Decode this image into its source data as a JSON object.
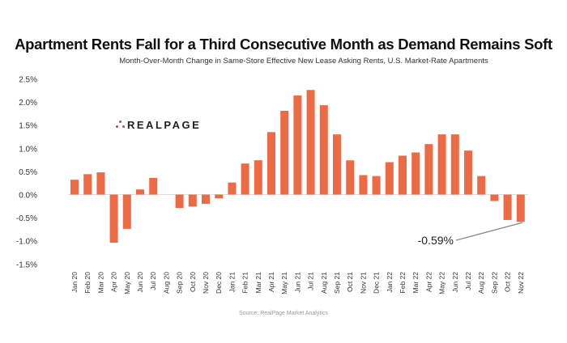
{
  "chart_data": {
    "type": "bar",
    "title": "Apartment Rents Fall for a Third Consecutive Month as Demand Remains Soft",
    "subtitle": "Month-Over-Month Change in Same-Store Effective New Lease Asking Rents, U.S. Market-Rate Apartments",
    "source": "Source: RealPage Market Analytics",
    "logo": "REALPAGE",
    "xlabel": "",
    "ylabel": "",
    "ylim": [
      -1.5,
      2.5
    ],
    "yticks": [
      2.5,
      2.0,
      1.5,
      1.0,
      0.5,
      0.0,
      -0.5,
      -1.0,
      -1.5
    ],
    "ytick_labels": [
      "2.5%",
      "2.0%",
      "1.5%",
      "1.0%",
      "0.5%",
      "0.0%",
      "-0.5%",
      "-1.0%",
      "-1.5%"
    ],
    "grid": false,
    "bar_color": "#ee6a45",
    "categories": [
      "Jan 20",
      "Feb 20",
      "Mar 20",
      "Apr 20",
      "May 20",
      "Jun 20",
      "Jul 20",
      "Aug 20",
      "Sep 20",
      "Oct 20",
      "Nov 20",
      "Dec 20",
      "Jan 21",
      "Feb 21",
      "Mar 21",
      "Apr 21",
      "May 21",
      "Jun 21",
      "Jul 21",
      "Aug 21",
      "Sep 21",
      "Oct 21",
      "Nov 21",
      "Dec 21",
      "Jan 22",
      "Feb 22",
      "Mar 22",
      "Apr 22",
      "May 22",
      "Jun 22",
      "Jul 22",
      "Aug 22",
      "Sep 22",
      "Oct 22",
      "Nov 22"
    ],
    "values": [
      0.32,
      0.44,
      0.48,
      -1.04,
      -0.74,
      0.11,
      0.36,
      0.0,
      -0.29,
      -0.26,
      -0.2,
      -0.08,
      0.26,
      0.67,
      0.74,
      1.35,
      1.81,
      2.14,
      2.26,
      1.93,
      1.3,
      0.74,
      0.42,
      0.4,
      0.7,
      0.84,
      0.91,
      1.09,
      1.3,
      1.3,
      0.95,
      0.4,
      -0.14,
      -0.55,
      -0.59
    ],
    "annotation": {
      "text": "-0.59%",
      "target": "Nov 22"
    }
  }
}
